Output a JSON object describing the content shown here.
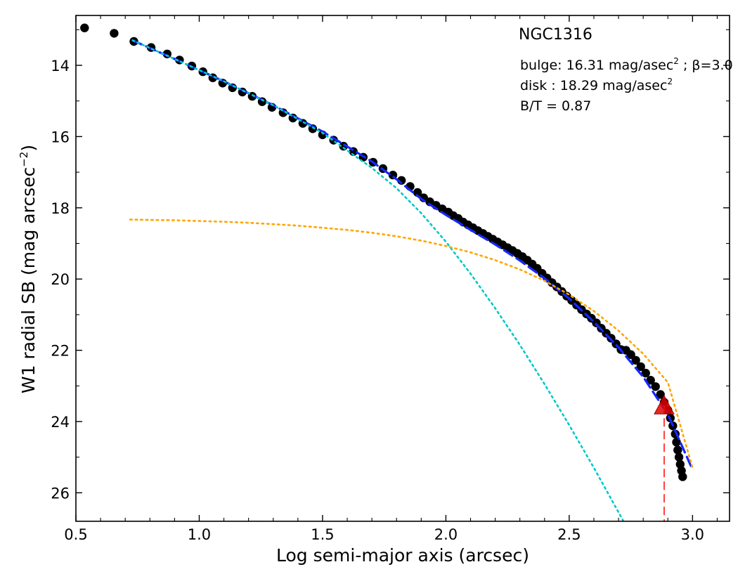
{
  "chart_data": {
    "type": "scatter",
    "title": "NGC1316",
    "xlabel": "Log semi-major axis (arcsec)",
    "ylabel": "W1 radial SB (mag arcsec",
    "ylabel_exponent": "−2",
    "ylabel_close": ")",
    "xlim": [
      0.5,
      3.15
    ],
    "ylim": [
      26.8,
      12.6
    ],
    "y_inverted": true,
    "grid": false,
    "x_ticks": [
      0.5,
      1.0,
      1.5,
      2.0,
      2.5,
      3.0
    ],
    "x_tick_labels": [
      "0.5",
      "1.0",
      "1.5",
      "2.0",
      "2.5",
      "3.0"
    ],
    "y_ticks": [
      14,
      16,
      18,
      20,
      22,
      24,
      26
    ],
    "y_tick_labels": [
      "14",
      "16",
      "18",
      "20",
      "22",
      "24",
      "26"
    ],
    "annotations": {
      "bulge_text": "bulge: 16.31 mag/asec",
      "bulge_exp": "2",
      "bulge_beta": " ; β=3.0",
      "disk_text": "disk  : 18.29 mag/asec",
      "disk_exp": "2",
      "bt_text": "B/T = 0.87"
    },
    "series": [
      {
        "kind": "points",
        "color": "#000000",
        "x": [
          0.535,
          0.655,
          0.735,
          0.805,
          0.87,
          0.92,
          0.97,
          1.015,
          1.055,
          1.095,
          1.135,
          1.175,
          1.215,
          1.255,
          1.295,
          1.34,
          1.38,
          1.42,
          1.46,
          1.5,
          1.545,
          1.585,
          1.625,
          1.665,
          1.705,
          1.745,
          1.785,
          1.82,
          1.855,
          1.885,
          1.91,
          1.935,
          1.96,
          1.985,
          2.01,
          2.03,
          2.05,
          2.07,
          2.09,
          2.11,
          2.13,
          2.15,
          2.17,
          2.19,
          2.21,
          2.23,
          2.25,
          2.27,
          2.29,
          2.31,
          2.33,
          2.35,
          2.37,
          2.39,
          2.41,
          2.43,
          2.45,
          2.47,
          2.49,
          2.51,
          2.53,
          2.55,
          2.57,
          2.59,
          2.61,
          2.63,
          2.65,
          2.67,
          2.69,
          2.71,
          2.73,
          2.75,
          2.77,
          2.79,
          2.81,
          2.83,
          2.85,
          2.87,
          2.885,
          2.9,
          2.91,
          2.92,
          2.93,
          2.935,
          2.94,
          2.945,
          2.95,
          2.955,
          2.96
        ],
        "y": [
          12.95,
          13.1,
          13.33,
          13.5,
          13.68,
          13.85,
          14.02,
          14.18,
          14.35,
          14.5,
          14.63,
          14.75,
          14.87,
          15.02,
          15.18,
          15.33,
          15.48,
          15.63,
          15.78,
          15.95,
          16.1,
          16.27,
          16.42,
          16.58,
          16.72,
          16.9,
          17.08,
          17.23,
          17.4,
          17.57,
          17.72,
          17.83,
          17.93,
          18.03,
          18.12,
          18.22,
          18.3,
          18.4,
          18.48,
          18.56,
          18.64,
          18.72,
          18.8,
          18.88,
          18.96,
          19.04,
          19.12,
          19.2,
          19.28,
          19.37,
          19.47,
          19.58,
          19.7,
          19.84,
          19.97,
          20.1,
          20.22,
          20.35,
          20.48,
          20.6,
          20.73,
          20.86,
          20.98,
          21.1,
          21.23,
          21.38,
          21.52,
          21.66,
          21.82,
          21.98,
          22.0,
          22.12,
          22.28,
          22.46,
          22.64,
          22.84,
          23.02,
          23.24,
          23.46,
          23.68,
          23.9,
          24.12,
          24.35,
          24.58,
          24.8,
          25.0,
          25.2,
          25.38,
          25.55
        ]
      },
      {
        "kind": "line",
        "name_role": "total model",
        "color": "#1428ff",
        "x": [
          0.73,
          0.9,
          1.1,
          1.3,
          1.5,
          1.7,
          1.8,
          1.9,
          2.0,
          2.1,
          2.2,
          2.3,
          2.4,
          2.5,
          2.6,
          2.7,
          2.8,
          2.9,
          3.0
        ],
        "y": [
          13.3,
          13.82,
          14.45,
          15.12,
          15.86,
          16.7,
          17.2,
          17.75,
          18.2,
          18.62,
          19.03,
          19.48,
          19.98,
          20.55,
          21.2,
          21.92,
          22.75,
          23.8,
          25.35
        ]
      },
      {
        "kind": "line",
        "name_role": "bulge",
        "color": "#00c8c8",
        "x": [
          0.73,
          0.9,
          1.1,
          1.3,
          1.5,
          1.7,
          1.8,
          1.9,
          2.0,
          2.1,
          2.2,
          2.3,
          2.4,
          2.5,
          2.6,
          2.7,
          2.8,
          2.88
        ],
        "y": [
          13.3,
          13.82,
          14.45,
          15.12,
          15.9,
          16.88,
          17.45,
          18.15,
          18.95,
          19.85,
          20.82,
          21.85,
          22.95,
          24.1,
          25.3,
          26.55,
          27.8,
          28.8
        ]
      },
      {
        "kind": "line",
        "name_role": "disk",
        "color": "#ffa500",
        "x": [
          0.72,
          0.8,
          0.9,
          1.0,
          1.1,
          1.2,
          1.3,
          1.4,
          1.5,
          1.6,
          1.7,
          1.8,
          1.9,
          2.0,
          2.1,
          2.2,
          2.3,
          2.4,
          2.5,
          2.6,
          2.7,
          2.8,
          2.9,
          3.0
        ],
        "y": [
          18.33,
          18.34,
          18.35,
          18.37,
          18.39,
          18.42,
          18.46,
          18.5,
          18.56,
          18.62,
          18.7,
          18.8,
          18.92,
          19.07,
          19.25,
          19.47,
          19.73,
          20.05,
          20.44,
          20.9,
          21.45,
          22.1,
          22.9,
          25.3
        ]
      }
    ],
    "marker": {
      "shape": "triangle",
      "color": "#e00000",
      "x": 2.885,
      "y": 23.55,
      "vline_color": "#ff4040"
    }
  }
}
